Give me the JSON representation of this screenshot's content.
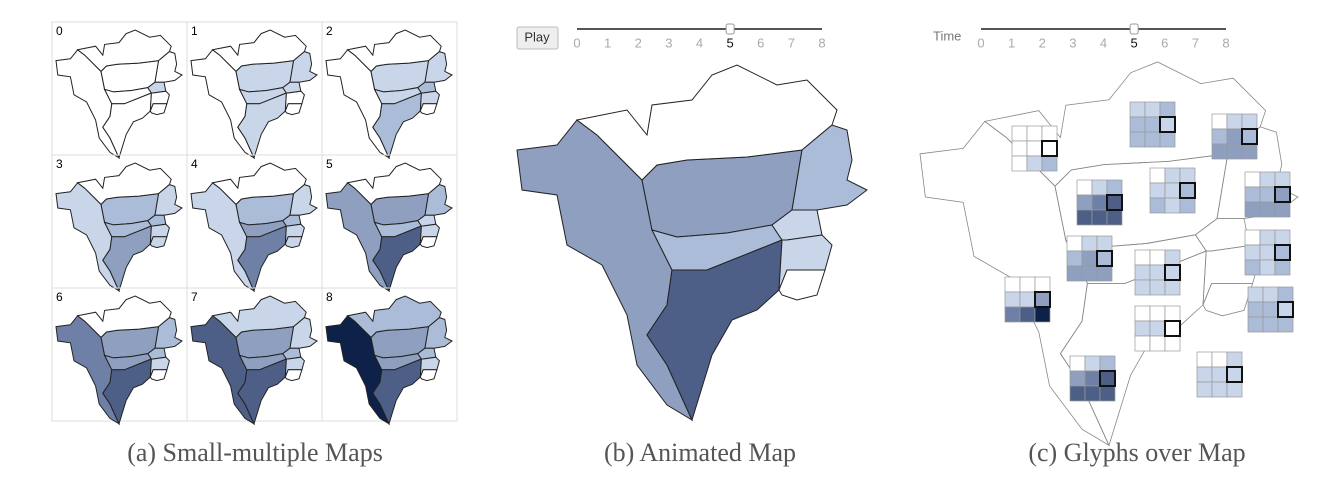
{
  "panels": [
    {
      "caption": "(a) Small-multiple Maps",
      "cells": [
        "0",
        "1",
        "2",
        "3",
        "4",
        "5",
        "6",
        "7",
        "8"
      ]
    },
    {
      "caption": "(b) Animated Map",
      "button": "Play",
      "slider": {
        "ticks": [
          "0",
          "1",
          "2",
          "3",
          "4",
          "5",
          "6",
          "7",
          "8"
        ],
        "current": 5
      }
    },
    {
      "caption": "(c) Glyphs over Map",
      "slider_label": "Time",
      "slider": {
        "ticks": [
          "0",
          "1",
          "2",
          "3",
          "4",
          "5",
          "6",
          "7",
          "8"
        ],
        "current": 5
      }
    }
  ]
}
